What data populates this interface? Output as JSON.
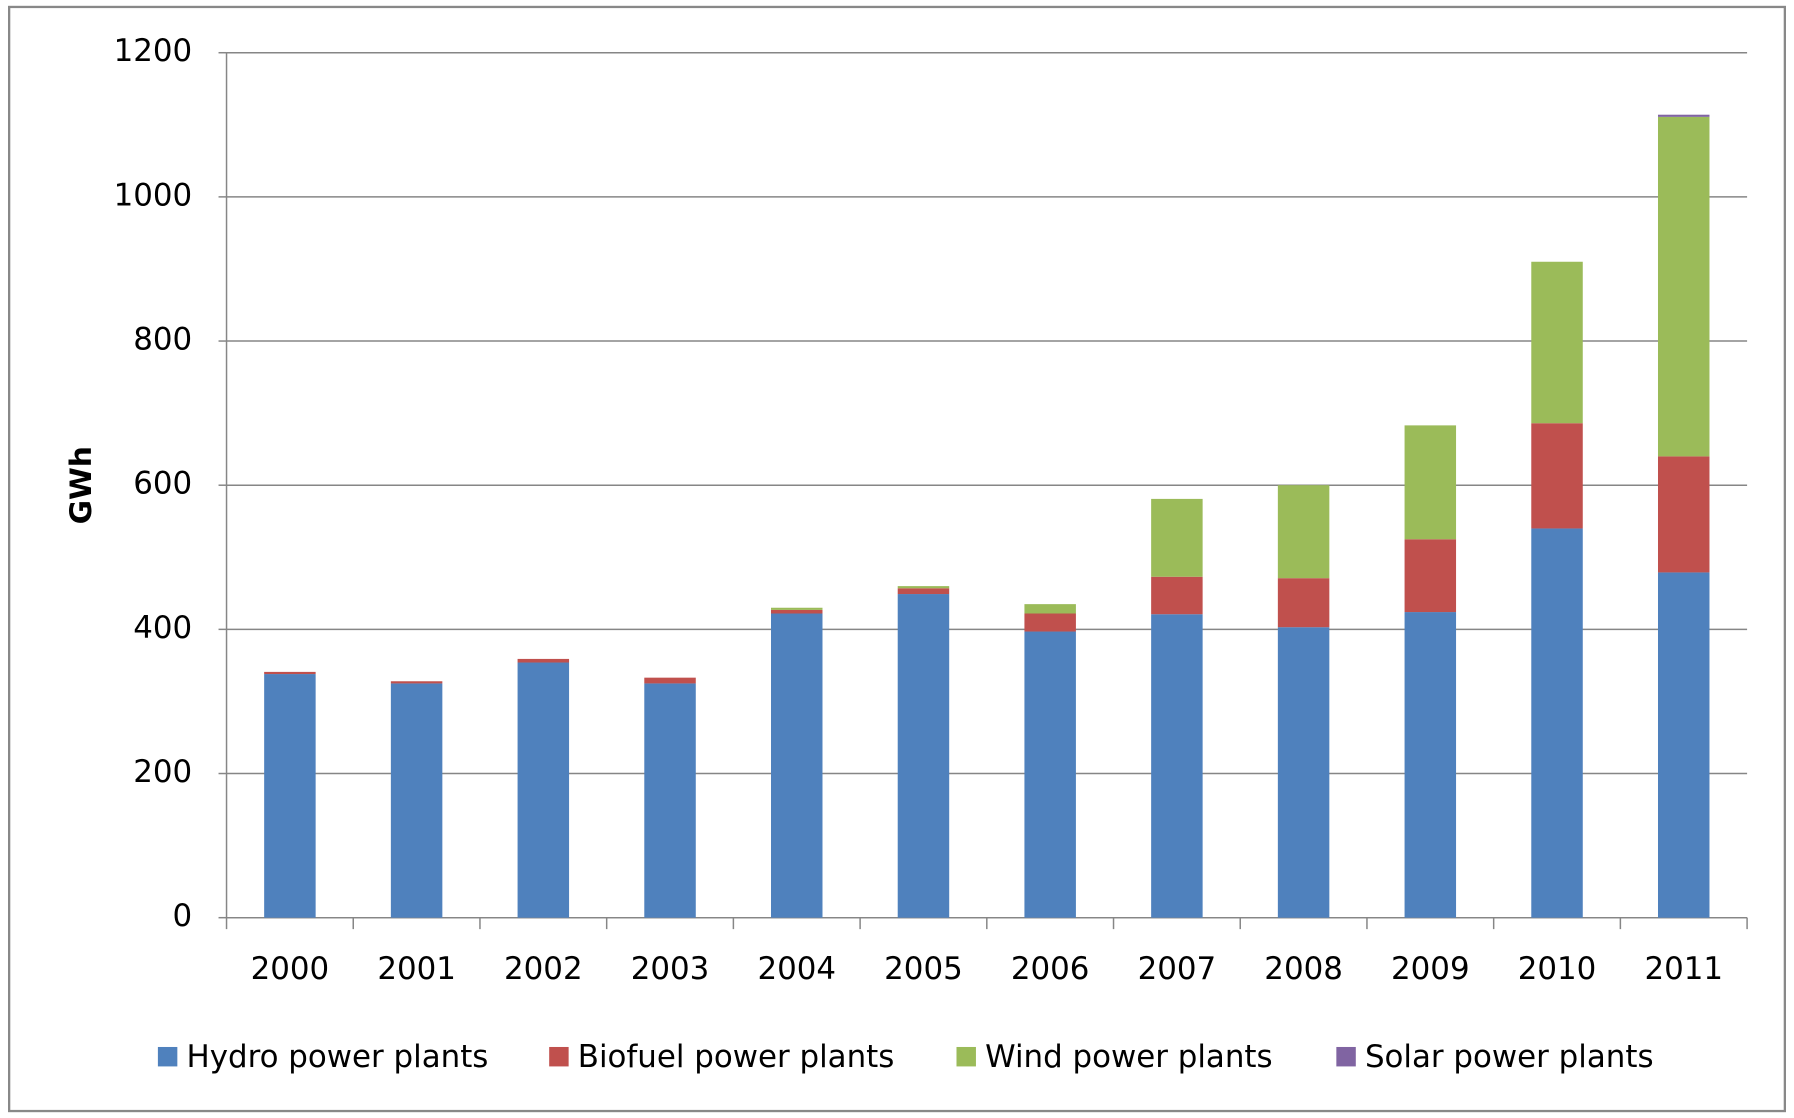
{
  "chart_data": {
    "type": "stacked_bar",
    "y_label": "GWh",
    "categories": [
      "2000",
      "2001",
      "2002",
      "2003",
      "2004",
      "2005",
      "2006",
      "2007",
      "2008",
      "2009",
      "2010",
      "2011"
    ],
    "series": [
      {
        "name": "Hydro power plants",
        "color": "#4f81bd",
        "values": [
          338,
          325,
          354,
          325,
          422,
          449,
          397,
          421,
          403,
          424,
          540,
          479
        ]
      },
      {
        "name": "Biofuel power plants",
        "color": "#c0504d",
        "values": [
          3,
          3,
          5,
          8,
          5,
          8,
          25,
          52,
          68,
          101,
          146,
          161
        ]
      },
      {
        "name": "Wind power plants",
        "color": "#9bbb59",
        "values": [
          0,
          0,
          0,
          0,
          3,
          3,
          13,
          108,
          129,
          158,
          224,
          471
        ]
      },
      {
        "name": "Solar power plants",
        "color": "#8064a2",
        "values": [
          0,
          0,
          0,
          0,
          0,
          0,
          0,
          0,
          0,
          0,
          0,
          3
        ]
      }
    ],
    "ylim": [
      0,
      1200
    ],
    "yticks": [
      0,
      200,
      400,
      600,
      800,
      1000,
      1200
    ],
    "grid": true,
    "legend": "bottom"
  }
}
